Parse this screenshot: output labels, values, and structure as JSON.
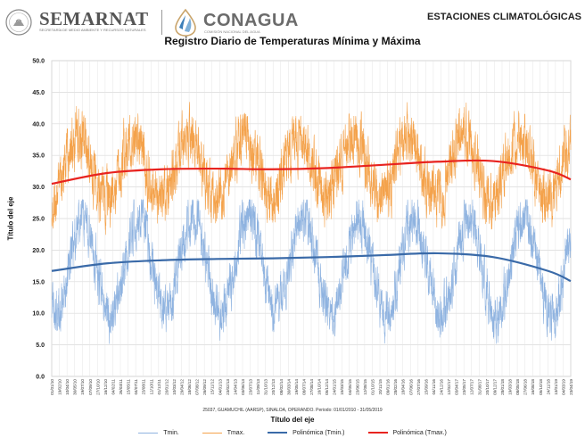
{
  "header": {
    "semarnat_name": "SEMARNAT",
    "semarnat_sub": "SECRETARÍA DE MEDIO AMBIENTE Y RECURSOS NATURALES",
    "conagua_name": "CONAGUA",
    "conagua_sub": "COMISIÓN NACIONAL DEL AGUA",
    "report_title": "ESTACIONES CLIMATOLÓGICAS",
    "seal_icon": "mexico-seal-icon",
    "conagua_icon": "conagua-water-logo-icon"
  },
  "footer": {
    "info": "25037, GUAMUCHIL (AARSP), SINALOA, OPERANDO. Periodo: 01/01/2010 - 31/05/2019"
  },
  "chart_data": {
    "type": "line",
    "title": "Registro Diario de Temperaturas Mínima y Máxima",
    "xlabel": "Título del eje",
    "ylabel": "Título del eje",
    "ylim": [
      0,
      50
    ],
    "yticks": [
      "0.0",
      "5.0",
      "10.0",
      "15.0",
      "20.0",
      "25.0",
      "30.0",
      "35.0",
      "40.0",
      "45.0",
      "50.0"
    ],
    "grid": true,
    "legend_position": "bottom",
    "x_start": "2010-01-01",
    "x_end": "2019-05-31",
    "x_tick_labels": [
      "01/01/10",
      "19/02/10",
      "10/04/10",
      "30/05/10",
      "19/07/10",
      "07/09/10",
      "27/10/10",
      "16/12/10",
      "04/02/11",
      "26/03/11",
      "15/05/11",
      "04/07/11",
      "23/08/11",
      "12/10/11",
      "01/12/11",
      "20/01/12",
      "10/03/12",
      "29/04/12",
      "18/06/12",
      "07/08/12",
      "26/09/12",
      "15/11/12",
      "04/01/13",
      "23/02/13",
      "14/04/13",
      "03/06/13",
      "23/07/13",
      "11/09/13",
      "31/10/13",
      "20/12/13",
      "08/02/14",
      "30/03/14",
      "19/05/14",
      "08/07/14",
      "27/08/14",
      "16/10/14",
      "05/12/14",
      "24/01/15",
      "15/03/15",
      "04/05/15",
      "23/06/15",
      "12/08/15",
      "01/10/15",
      "20/11/15",
      "09/01/16",
      "28/02/16",
      "18/04/16",
      "07/06/16",
      "27/07/16",
      "15/09/16",
      "04/11/16",
      "24/12/16",
      "12/02/17",
      "03/04/17",
      "23/05/17",
      "12/07/17",
      "31/08/17",
      "20/10/17",
      "09/12/17",
      "28/01/18",
      "19/03/18",
      "08/05/18",
      "27/06/18",
      "16/08/18",
      "05/10/18",
      "24/11/18",
      "13/01/19",
      "04/03/19",
      "23/04/19"
    ],
    "seasonal_model": {
      "tmax": {
        "mean": 33.0,
        "amplitude": 5.0,
        "peak_day_of_year": 175,
        "noise_range": 7.0
      },
      "tmin": {
        "mean": 17.5,
        "amplitude": 7.5,
        "peak_day_of_year": 205,
        "noise_range": 6.0
      }
    },
    "series": [
      {
        "name": "Tmin.",
        "color": "#8fb3e0",
        "kind": "daily"
      },
      {
        "name": "Tmax.",
        "color": "#f4a24b",
        "kind": "daily"
      },
      {
        "name": "Polinómica (Tmin.)",
        "color": "#3a6aa8",
        "kind": "trend",
        "x": [
          "2010-01-01",
          "2011-01-01",
          "2012-01-01",
          "2013-01-01",
          "2014-01-01",
          "2015-01-01",
          "2016-01-01",
          "2017-01-01",
          "2018-01-01",
          "2019-01-01",
          "2019-05-31"
        ],
        "y": [
          16.7,
          17.9,
          18.4,
          18.6,
          18.7,
          18.9,
          19.2,
          19.5,
          18.9,
          16.7,
          15.1
        ]
      },
      {
        "name": "Polinómica (Tmax.)",
        "color": "#e8231f",
        "kind": "trend",
        "x": [
          "2010-01-01",
          "2011-01-01",
          "2012-01-01",
          "2013-01-01",
          "2014-01-01",
          "2015-01-01",
          "2016-01-01",
          "2017-01-01",
          "2018-01-01",
          "2019-01-01",
          "2019-05-31"
        ],
        "y": [
          30.5,
          32.2,
          32.8,
          32.9,
          32.8,
          33.0,
          33.5,
          34.0,
          34.1,
          32.6,
          31.2
        ]
      }
    ]
  }
}
